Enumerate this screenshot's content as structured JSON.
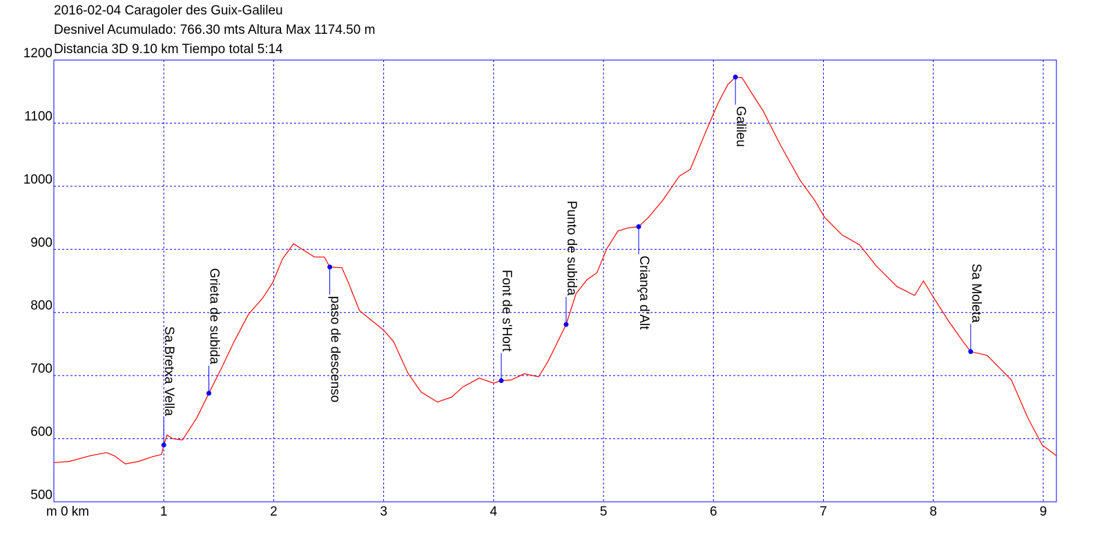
{
  "chart_data": {
    "type": "line",
    "title": "2016-02-04 Caragoler des Guix-Galileu",
    "subtitle_lines": [
      "Desnivel Acumulado: 766.30 mts  Altura Max 1174.50 m",
      "Distancia 3D 9.10 km  Tiempo total 5:14"
    ],
    "xlim": [
      0,
      9.12
    ],
    "ylim": [
      500,
      1200
    ],
    "xticks": [
      {
        "value": 0,
        "label": "m 0 km"
      },
      1,
      2,
      3,
      4,
      5,
      6,
      7,
      8,
      9
    ],
    "yticks": [
      500,
      600,
      700,
      800,
      900,
      1000,
      1100,
      1200
    ],
    "grid": true,
    "series": [
      {
        "color": "#ff0000",
        "x": [
          0,
          0.14,
          0.33,
          0.48,
          0.55,
          0.65,
          0.77,
          0.89,
          0.98,
          1.0,
          1.03,
          1.08,
          1.17,
          1.3,
          1.41,
          1.52,
          1.64,
          1.77,
          1.9,
          1.99,
          2.08,
          2.18,
          2.27,
          2.37,
          2.46,
          2.51,
          2.62,
          2.68,
          2.78,
          2.9,
          3.0,
          3.09,
          3.22,
          3.34,
          3.49,
          3.62,
          3.72,
          3.87,
          4.0,
          4.07,
          4.16,
          4.28,
          4.41,
          4.5,
          4.66,
          4.75,
          4.85,
          4.94,
          5.03,
          5.13,
          5.22,
          5.32,
          5.41,
          5.54,
          5.69,
          5.79,
          5.92,
          6.04,
          6.13,
          6.2,
          6.26,
          6.35,
          6.45,
          6.61,
          6.79,
          6.92,
          7.01,
          7.17,
          7.33,
          7.48,
          7.67,
          7.83,
          7.91,
          7.98,
          8.14,
          8.27,
          8.34,
          8.49,
          8.71,
          8.86,
          8.99,
          9.12
        ],
        "values": [
          562,
          564,
          573,
          578,
          573,
          560,
          564,
          571,
          575,
          590,
          606,
          600,
          598,
          633,
          672,
          710,
          754,
          797,
          823,
          847,
          885,
          909,
          899,
          888,
          888,
          872,
          871,
          847,
          803,
          786,
          772,
          754,
          704,
          674,
          658,
          666,
          682,
          696,
          688,
          692,
          693,
          703,
          698,
          724,
          781,
          830,
          852,
          863,
          901,
          929,
          934,
          936,
          951,
          978,
          1016,
          1027,
          1082,
          1131,
          1161,
          1173,
          1172,
          1147,
          1120,
          1065,
          1009,
          978,
          951,
          923,
          907,
          874,
          841,
          827,
          850,
          830,
          786,
          754,
          738,
          732,
          693,
          633,
          590,
          573
        ]
      }
    ],
    "annotations": [
      {
        "label": "Sa.Bretxa Vella",
        "x": 1.0,
        "y": 590,
        "position": "above"
      },
      {
        "label": "Grieta de subida",
        "x": 1.41,
        "y": 672,
        "position": "above"
      },
      {
        "label": "paso de descenso",
        "x": 2.51,
        "y": 872,
        "position": "below"
      },
      {
        "label": "Font de s'Hort",
        "x": 4.07,
        "y": 692,
        "position": "above"
      },
      {
        "label": "Punto de subida",
        "x": 4.66,
        "y": 781,
        "position": "above"
      },
      {
        "label": "Criança d'Alt",
        "x": 5.32,
        "y": 936,
        "position": "below"
      },
      {
        "label": "Galileu",
        "x": 6.2,
        "y": 1173,
        "position": "below"
      },
      {
        "label": "Sa Moleta",
        "x": 8.34,
        "y": 738,
        "position": "above"
      }
    ]
  }
}
